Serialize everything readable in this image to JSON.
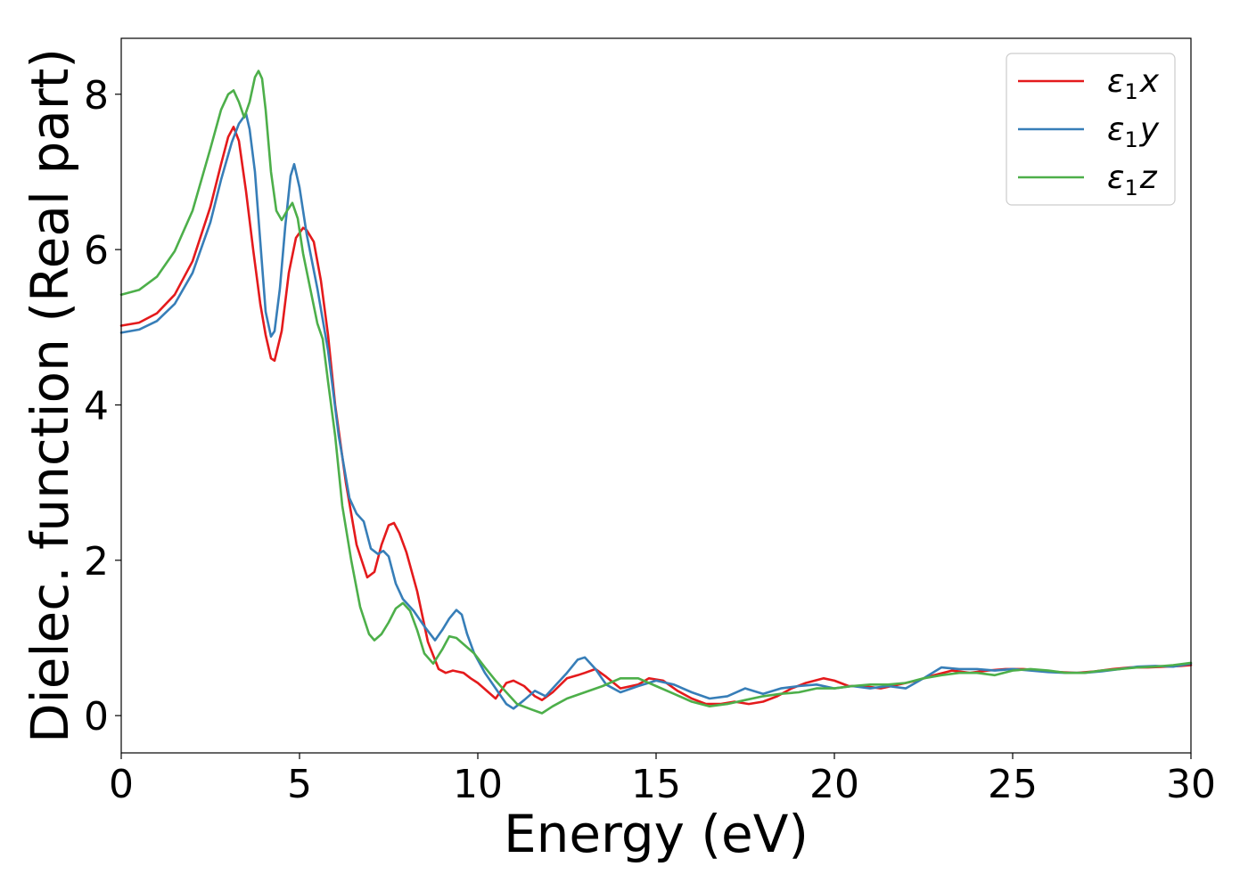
{
  "chart_data": {
    "type": "line",
    "title": "",
    "xlabel": "Energy (eV)",
    "ylabel": "Dielec. function (Real part)",
    "xlim": [
      0,
      30
    ],
    "ylim": [
      -0.48,
      8.72
    ],
    "xticks": [
      0,
      5,
      10,
      15,
      20,
      25,
      30
    ],
    "yticks": [
      0,
      2,
      4,
      6,
      8
    ],
    "grid": false,
    "legend_position": "top-right",
    "series": [
      {
        "name": "ε1x",
        "legend": {
          "main": "ε",
          "sub": "1",
          "var": "x"
        },
        "color": "#e41a1c",
        "x": [
          0,
          0.5,
          1,
          1.5,
          2,
          2.5,
          2.8,
          3.0,
          3.15,
          3.3,
          3.5,
          3.7,
          3.9,
          4.05,
          4.2,
          4.3,
          4.5,
          4.7,
          4.9,
          5.1,
          5.2,
          5.4,
          5.6,
          5.8,
          6.0,
          6.3,
          6.6,
          6.9,
          7.1,
          7.3,
          7.5,
          7.65,
          7.8,
          8.0,
          8.3,
          8.6,
          8.9,
          9.1,
          9.3,
          9.6,
          9.8,
          10.0,
          10.3,
          10.5,
          10.8,
          11.0,
          11.3,
          11.6,
          11.8,
          12.1,
          12.5,
          12.8,
          13.0,
          13.3,
          13.6,
          14.0,
          14.5,
          14.8,
          15.2,
          15.6,
          16.0,
          16.4,
          16.8,
          17.2,
          17.6,
          18.0,
          18.4,
          18.8,
          19.2,
          19.7,
          20.0,
          20.4,
          20.8,
          21.3,
          21.8,
          22.3,
          22.8,
          23.3,
          23.8,
          24.3,
          24.8,
          25.3,
          25.8,
          26.3,
          26.8,
          27.3,
          27.8,
          28.3,
          28.8,
          29.3,
          29.7,
          30.0
        ],
        "y": [
          5.02,
          5.06,
          5.18,
          5.42,
          5.85,
          6.55,
          7.1,
          7.45,
          7.58,
          7.4,
          6.75,
          6.0,
          5.3,
          4.9,
          4.6,
          4.57,
          4.95,
          5.7,
          6.15,
          6.28,
          6.25,
          6.1,
          5.6,
          4.9,
          4.0,
          3.0,
          2.2,
          1.78,
          1.85,
          2.2,
          2.45,
          2.48,
          2.35,
          2.1,
          1.6,
          0.95,
          0.6,
          0.55,
          0.58,
          0.55,
          0.48,
          0.42,
          0.3,
          0.22,
          0.42,
          0.45,
          0.38,
          0.25,
          0.2,
          0.3,
          0.48,
          0.52,
          0.55,
          0.6,
          0.5,
          0.35,
          0.4,
          0.48,
          0.45,
          0.32,
          0.22,
          0.15,
          0.15,
          0.18,
          0.15,
          0.18,
          0.25,
          0.35,
          0.42,
          0.48,
          0.45,
          0.38,
          0.38,
          0.35,
          0.4,
          0.45,
          0.52,
          0.58,
          0.55,
          0.58,
          0.6,
          0.6,
          0.58,
          0.56,
          0.55,
          0.57,
          0.6,
          0.62,
          0.62,
          0.63,
          0.64,
          0.65
        ]
      },
      {
        "name": "ε1y",
        "legend": {
          "main": "ε",
          "sub": "1",
          "var": "y"
        },
        "color": "#377eb8",
        "x": [
          0,
          0.5,
          1,
          1.5,
          2,
          2.5,
          2.8,
          3.1,
          3.3,
          3.5,
          3.6,
          3.75,
          3.9,
          4.05,
          4.2,
          4.3,
          4.45,
          4.6,
          4.75,
          4.85,
          5.0,
          5.2,
          5.5,
          5.8,
          6.1,
          6.4,
          6.6,
          6.8,
          7.0,
          7.2,
          7.35,
          7.5,
          7.7,
          7.9,
          8.2,
          8.5,
          8.8,
          9.0,
          9.2,
          9.4,
          9.55,
          9.7,
          9.9,
          10.2,
          10.5,
          10.8,
          11.0,
          11.3,
          11.6,
          11.9,
          12.2,
          12.5,
          12.8,
          13.0,
          13.3,
          13.6,
          14.0,
          14.5,
          15.0,
          15.5,
          16.0,
          16.5,
          17.0,
          17.5,
          18.0,
          18.5,
          19.0,
          19.5,
          20.0,
          20.5,
          21.0,
          21.5,
          22.0,
          22.5,
          23.0,
          23.5,
          24.0,
          24.5,
          25.0,
          25.5,
          26.0,
          26.5,
          27.0,
          27.5,
          28.0,
          28.5,
          29.0,
          29.5,
          30.0
        ],
        "y": [
          4.93,
          4.97,
          5.08,
          5.3,
          5.7,
          6.35,
          6.9,
          7.38,
          7.62,
          7.75,
          7.55,
          7.0,
          6.1,
          5.2,
          4.88,
          4.95,
          5.5,
          6.3,
          6.95,
          7.1,
          6.8,
          6.2,
          5.5,
          4.7,
          3.6,
          2.8,
          2.6,
          2.5,
          2.15,
          2.08,
          2.12,
          2.05,
          1.7,
          1.5,
          1.35,
          1.15,
          0.97,
          1.1,
          1.25,
          1.36,
          1.3,
          1.05,
          0.8,
          0.55,
          0.35,
          0.15,
          0.09,
          0.2,
          0.32,
          0.25,
          0.4,
          0.55,
          0.72,
          0.75,
          0.6,
          0.4,
          0.3,
          0.38,
          0.45,
          0.4,
          0.3,
          0.22,
          0.25,
          0.35,
          0.28,
          0.35,
          0.38,
          0.4,
          0.35,
          0.38,
          0.35,
          0.38,
          0.35,
          0.48,
          0.62,
          0.6,
          0.6,
          0.58,
          0.6,
          0.58,
          0.56,
          0.55,
          0.55,
          0.57,
          0.6,
          0.63,
          0.64,
          0.63,
          0.67
        ]
      },
      {
        "name": "ε1z",
        "legend": {
          "main": "ε",
          "sub": "1",
          "var": "z"
        },
        "color": "#4daf4a",
        "x": [
          0,
          0.5,
          1,
          1.5,
          2,
          2.5,
          2.8,
          3.0,
          3.15,
          3.3,
          3.45,
          3.6,
          3.75,
          3.85,
          3.95,
          4.05,
          4.2,
          4.35,
          4.5,
          4.65,
          4.8,
          4.95,
          5.1,
          5.3,
          5.5,
          5.65,
          5.8,
          6.0,
          6.2,
          6.45,
          6.7,
          6.95,
          7.1,
          7.3,
          7.5,
          7.7,
          7.9,
          8.1,
          8.3,
          8.5,
          8.75,
          9.0,
          9.2,
          9.4,
          9.6,
          9.9,
          10.2,
          10.5,
          10.8,
          11.1,
          11.5,
          11.8,
          12.1,
          12.5,
          13.0,
          13.5,
          14.0,
          14.5,
          15.0,
          15.5,
          16.0,
          16.5,
          17.0,
          17.5,
          18.0,
          18.5,
          19.0,
          19.5,
          20.0,
          20.5,
          21.0,
          21.5,
          22.0,
          22.5,
          23.0,
          23.5,
          24.0,
          24.5,
          25.0,
          25.5,
          26.0,
          26.5,
          27.0,
          27.5,
          28.0,
          28.5,
          29.0,
          29.5,
          30.0
        ],
        "y": [
          5.42,
          5.48,
          5.65,
          5.98,
          6.5,
          7.3,
          7.8,
          8.0,
          8.05,
          7.9,
          7.7,
          7.9,
          8.22,
          8.3,
          8.2,
          7.8,
          7.0,
          6.5,
          6.38,
          6.5,
          6.6,
          6.4,
          5.95,
          5.5,
          5.05,
          4.85,
          4.3,
          3.6,
          2.7,
          2.0,
          1.4,
          1.05,
          0.97,
          1.05,
          1.2,
          1.38,
          1.45,
          1.35,
          1.1,
          0.8,
          0.67,
          0.85,
          1.02,
          1.0,
          0.92,
          0.8,
          0.62,
          0.45,
          0.3,
          0.15,
          0.08,
          0.03,
          0.12,
          0.22,
          0.3,
          0.38,
          0.48,
          0.48,
          0.38,
          0.28,
          0.18,
          0.12,
          0.15,
          0.2,
          0.25,
          0.28,
          0.3,
          0.35,
          0.35,
          0.38,
          0.4,
          0.4,
          0.42,
          0.48,
          0.52,
          0.55,
          0.55,
          0.52,
          0.58,
          0.6,
          0.58,
          0.55,
          0.55,
          0.58,
          0.6,
          0.62,
          0.63,
          0.65,
          0.68
        ]
      }
    ]
  }
}
